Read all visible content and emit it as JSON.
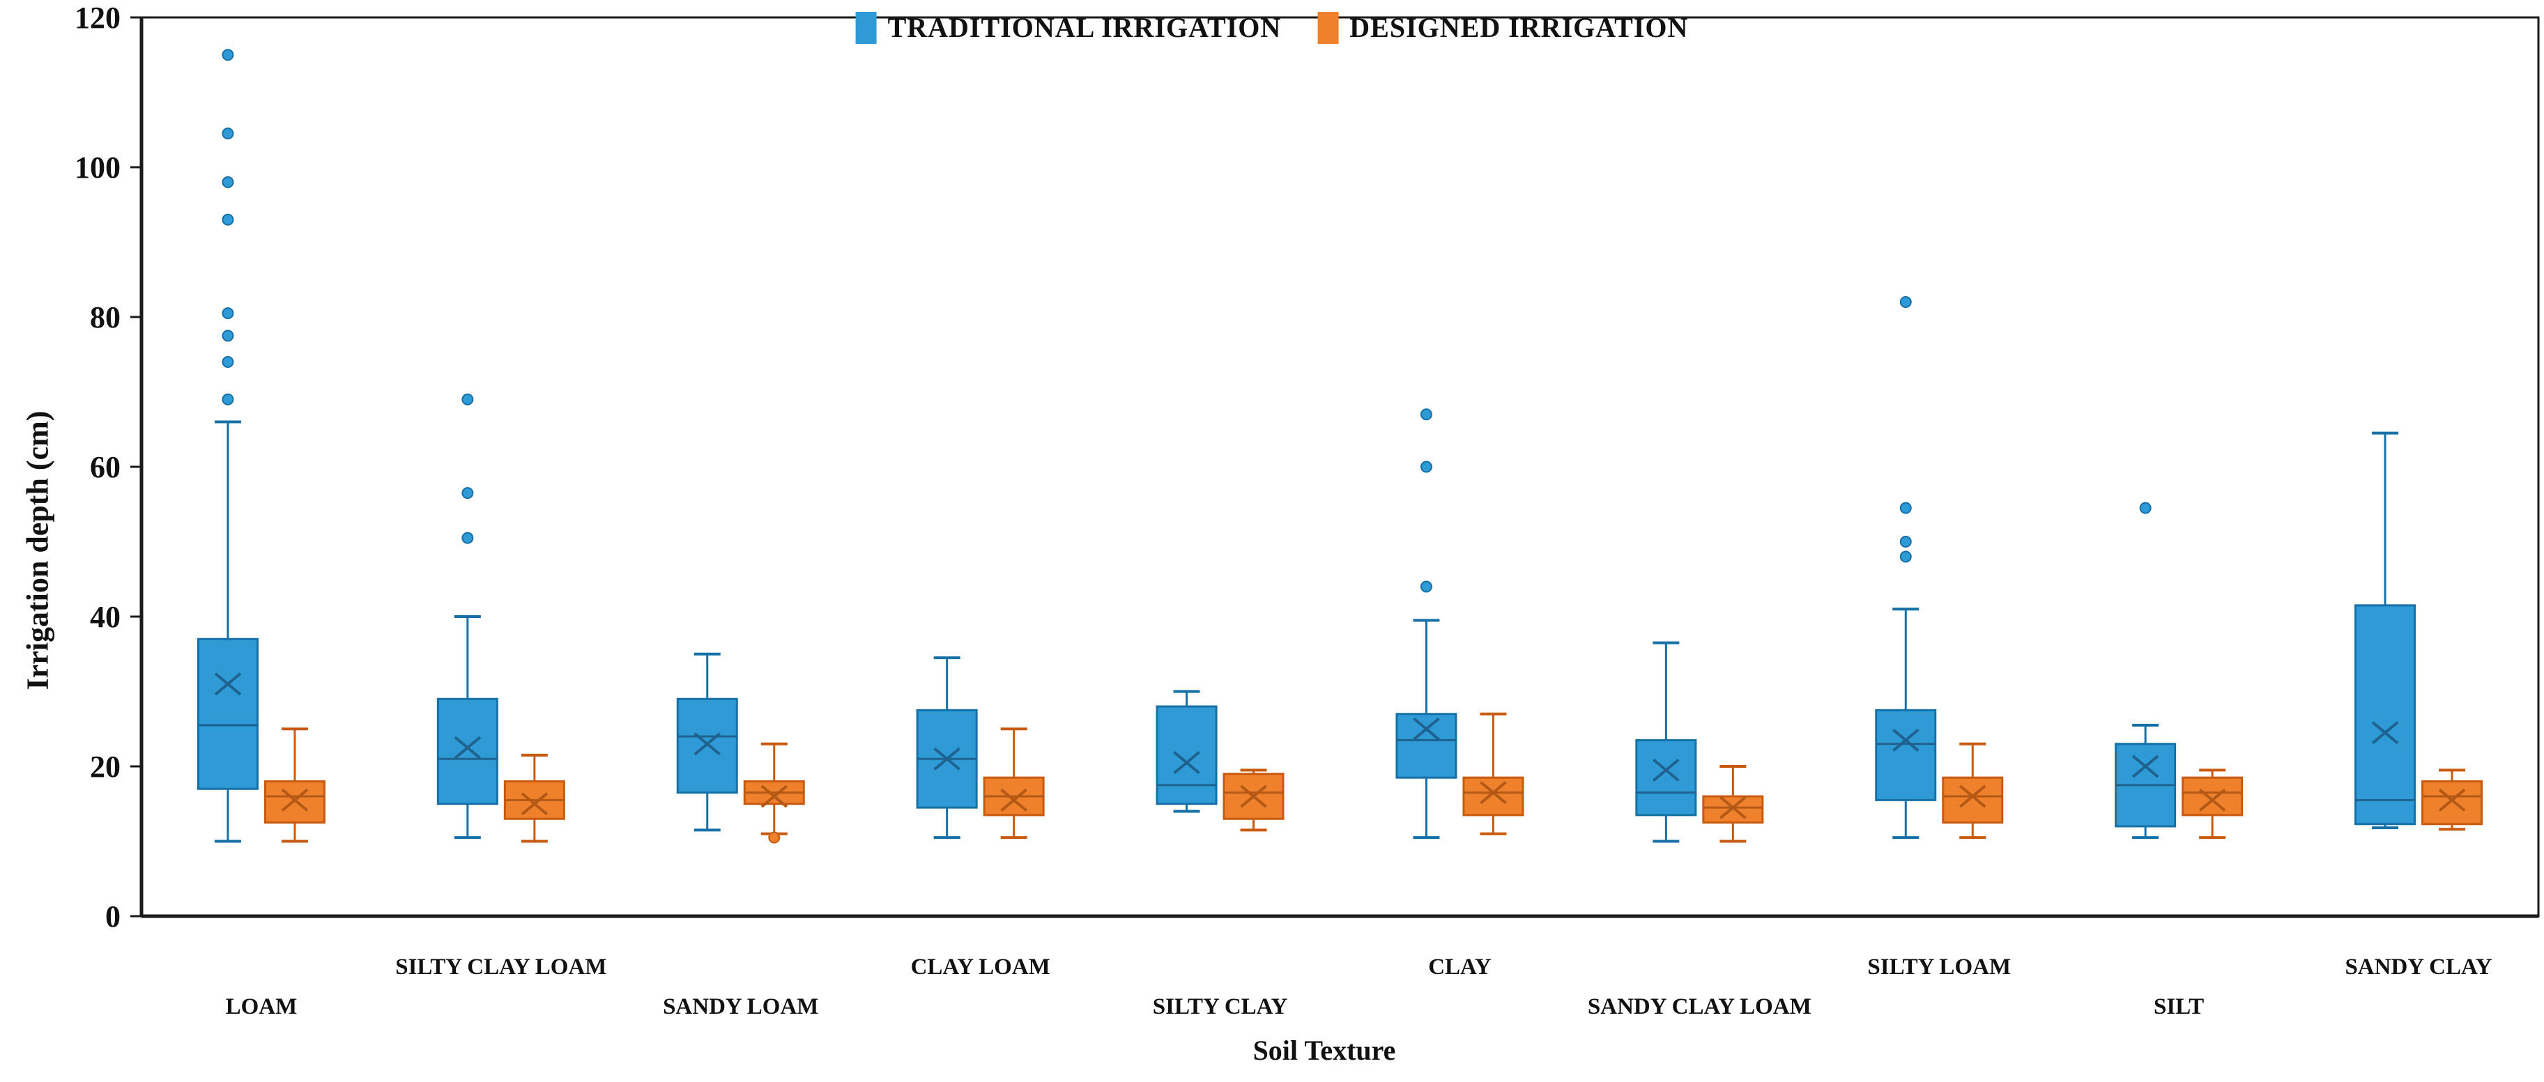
{
  "chart_data": {
    "type": "box",
    "title": "",
    "xlabel": "Soil Texture",
    "ylabel": "Irrigation depth  (cm)",
    "ylim": [
      0,
      120
    ],
    "yticks": [
      0,
      20,
      40,
      60,
      80,
      100,
      120
    ],
    "grid": false,
    "legend_position": "top-center",
    "axis_color": "#1a1a1a",
    "categories": [
      "LOAM",
      "SILTY CLAY LOAM",
      "SANDY LOAM",
      "CLAY LOAM",
      "SILTY CLAY",
      "CLAY",
      "SANDY CLAY LOAM",
      "SILTY LOAM",
      "SILT",
      "SANDY CLAY"
    ],
    "series": [
      {
        "name": "TRADITIONAL IRRIGATION",
        "color": "#2E9BD6",
        "border": "#1670A8",
        "detail": "#1F618F",
        "boxes": [
          {
            "lo": 10,
            "q1": 17,
            "med": 25.5,
            "q3": 37,
            "hi": 66,
            "mean": 31,
            "out": [
              69,
              74,
              77.5,
              80.5,
              93,
              98,
              104.5,
              115
            ]
          },
          {
            "lo": 10.5,
            "q1": 15,
            "med": 21,
            "q3": 29,
            "hi": 40,
            "mean": 22.5,
            "out": [
              50.5,
              56.5,
              69
            ]
          },
          {
            "lo": 11.5,
            "q1": 16.5,
            "med": 24,
            "q3": 29,
            "hi": 35,
            "mean": 23,
            "out": []
          },
          {
            "lo": 10.5,
            "q1": 14.5,
            "med": 21,
            "q3": 27.5,
            "hi": 34.5,
            "mean": 21,
            "out": []
          },
          {
            "lo": 14,
            "q1": 15,
            "med": 17.5,
            "q3": 28,
            "hi": 30,
            "mean": 20.5,
            "out": []
          },
          {
            "lo": 10.5,
            "q1": 18.5,
            "med": 23.5,
            "q3": 27,
            "hi": 39.5,
            "mean": 25,
            "out": [
              44,
              60,
              67
            ]
          },
          {
            "lo": 10,
            "q1": 13.5,
            "med": 16.5,
            "q3": 23.5,
            "hi": 36.5,
            "mean": 19.5,
            "out": []
          },
          {
            "lo": 10.5,
            "q1": 15.5,
            "med": 23,
            "q3": 27.5,
            "hi": 41,
            "mean": 23.5,
            "out": [
              48,
              50,
              54.5,
              82
            ]
          },
          {
            "lo": 10.5,
            "q1": 12,
            "med": 17.5,
            "q3": 23,
            "hi": 25.5,
            "mean": 20,
            "out": [
              54.5
            ]
          },
          {
            "lo": 11.8,
            "q1": 12.3,
            "med": 15.5,
            "q3": 41.5,
            "hi": 64.5,
            "mean": 24.5,
            "out": []
          }
        ]
      },
      {
        "name": "DESIGNED IRRIGATION",
        "color": "#F0812C",
        "border": "#C85A10",
        "detail": "#B35915",
        "boxes": [
          {
            "lo": 10,
            "q1": 12.5,
            "med": 16,
            "q3": 18,
            "hi": 25,
            "mean": 15.5,
            "out": []
          },
          {
            "lo": 10,
            "q1": 13,
            "med": 15.5,
            "q3": 18,
            "hi": 21.5,
            "mean": 15,
            "out": []
          },
          {
            "lo": 11,
            "q1": 15,
            "med": 16.5,
            "q3": 18,
            "hi": 23,
            "mean": 16,
            "out": [
              10.5
            ]
          },
          {
            "lo": 10.5,
            "q1": 13.5,
            "med": 16,
            "q3": 18.5,
            "hi": 25,
            "mean": 15.5,
            "out": []
          },
          {
            "lo": 11.5,
            "q1": 13,
            "med": 16.5,
            "q3": 19,
            "hi": 19.5,
            "mean": 16,
            "out": []
          },
          {
            "lo": 11,
            "q1": 13.5,
            "med": 16.5,
            "q3": 18.5,
            "hi": 27,
            "mean": 16.5,
            "out": []
          },
          {
            "lo": 10,
            "q1": 12.5,
            "med": 14.5,
            "q3": 16,
            "hi": 20,
            "mean": 14.5,
            "out": []
          },
          {
            "lo": 10.5,
            "q1": 12.5,
            "med": 16,
            "q3": 18.5,
            "hi": 23,
            "mean": 16,
            "out": []
          },
          {
            "lo": 10.5,
            "q1": 13.5,
            "med": 16.5,
            "q3": 18.5,
            "hi": 19.5,
            "mean": 15.5,
            "out": []
          },
          {
            "lo": 11.6,
            "q1": 12.3,
            "med": 16,
            "q3": 18,
            "hi": 19.5,
            "mean": 15.5,
            "out": []
          }
        ]
      }
    ]
  }
}
